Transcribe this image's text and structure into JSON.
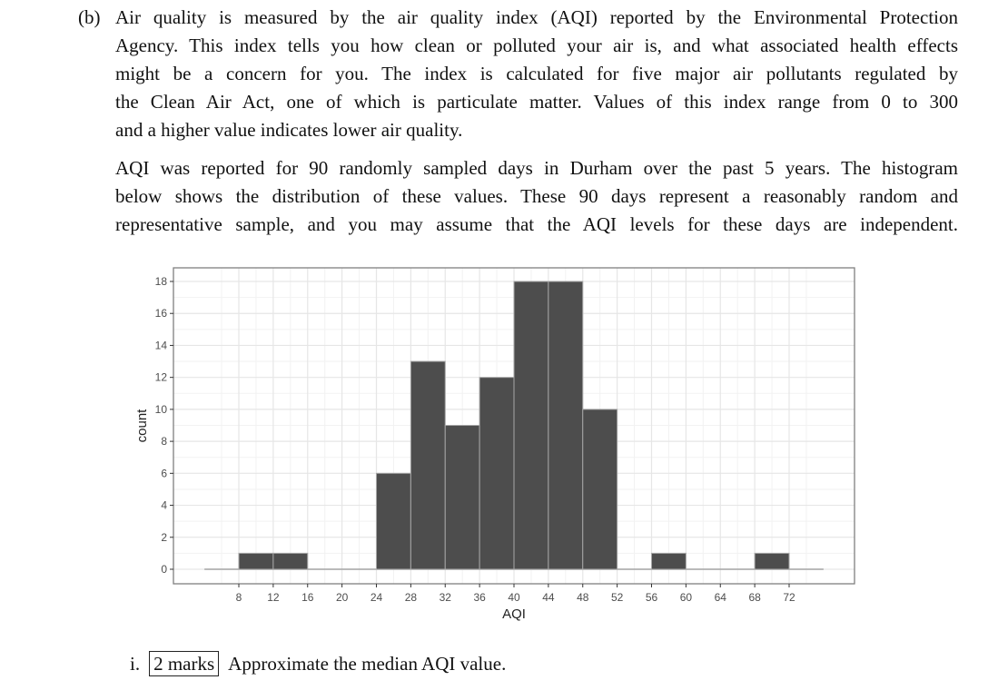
{
  "part_label": "(b)",
  "paragraph1_lines": [
    "Air quality is measured by the air quality index (AQI) reported by the Environmental Protection",
    "Agency. This index tells you how clean or polluted your air is, and what associated health effects",
    "might be a concern for you. The index is calculated for five major air pollutants regulated by",
    "the Clean Air Act, one of which is particulate matter. Values of this index range from 0 to 300",
    "and a higher value indicates lower air quality."
  ],
  "paragraph2_lines": [
    "AQI was reported for 90 randomly sampled days in Durham over the past 5 years. The histogram",
    "below shows the distribution of these values. These 90 days represent a reasonably random and",
    "representative sample, and you may assume that the AQI levels for these days are independent."
  ],
  "question": {
    "number": "i.",
    "marks": "2 marks",
    "text": "Approximate the median AQI value."
  },
  "chart_data": {
    "type": "bar",
    "subtype": "histogram",
    "title": "",
    "xlabel": "AQI",
    "ylabel": "count",
    "bin_width": 4,
    "bins": [
      {
        "start": 8,
        "end": 12,
        "count": 1
      },
      {
        "start": 12,
        "end": 16,
        "count": 1
      },
      {
        "start": 16,
        "end": 20,
        "count": 0
      },
      {
        "start": 20,
        "end": 24,
        "count": 0
      },
      {
        "start": 24,
        "end": 28,
        "count": 6
      },
      {
        "start": 28,
        "end": 32,
        "count": 13
      },
      {
        "start": 32,
        "end": 36,
        "count": 9
      },
      {
        "start": 36,
        "end": 40,
        "count": 12
      },
      {
        "start": 40,
        "end": 44,
        "count": 18
      },
      {
        "start": 44,
        "end": 48,
        "count": 18
      },
      {
        "start": 48,
        "end": 52,
        "count": 10
      },
      {
        "start": 52,
        "end": 56,
        "count": 0
      },
      {
        "start": 56,
        "end": 60,
        "count": 1
      },
      {
        "start": 60,
        "end": 64,
        "count": 0
      },
      {
        "start": 64,
        "end": 68,
        "count": 0
      },
      {
        "start": 68,
        "end": 72,
        "count": 1
      }
    ],
    "categories": [
      "8-12",
      "12-16",
      "16-20",
      "20-24",
      "24-28",
      "28-32",
      "32-36",
      "36-40",
      "40-44",
      "44-48",
      "48-52",
      "52-56",
      "56-60",
      "60-64",
      "64-68",
      "68-72"
    ],
    "values": [
      1,
      1,
      0,
      0,
      6,
      13,
      9,
      12,
      18,
      18,
      10,
      0,
      1,
      0,
      0,
      1
    ],
    "x_ticks": [
      8,
      12,
      16,
      20,
      24,
      28,
      32,
      36,
      40,
      44,
      48,
      52,
      56,
      60,
      64,
      68,
      72
    ],
    "y_ticks": [
      0,
      2,
      4,
      6,
      8,
      10,
      12,
      14,
      16,
      18
    ],
    "xlim": [
      4,
      76
    ],
    "ylim": [
      0,
      18
    ],
    "grid": true,
    "total": 90,
    "bar_color": "#4d4d4d",
    "bar_edge_color": "#a6a6a6"
  }
}
